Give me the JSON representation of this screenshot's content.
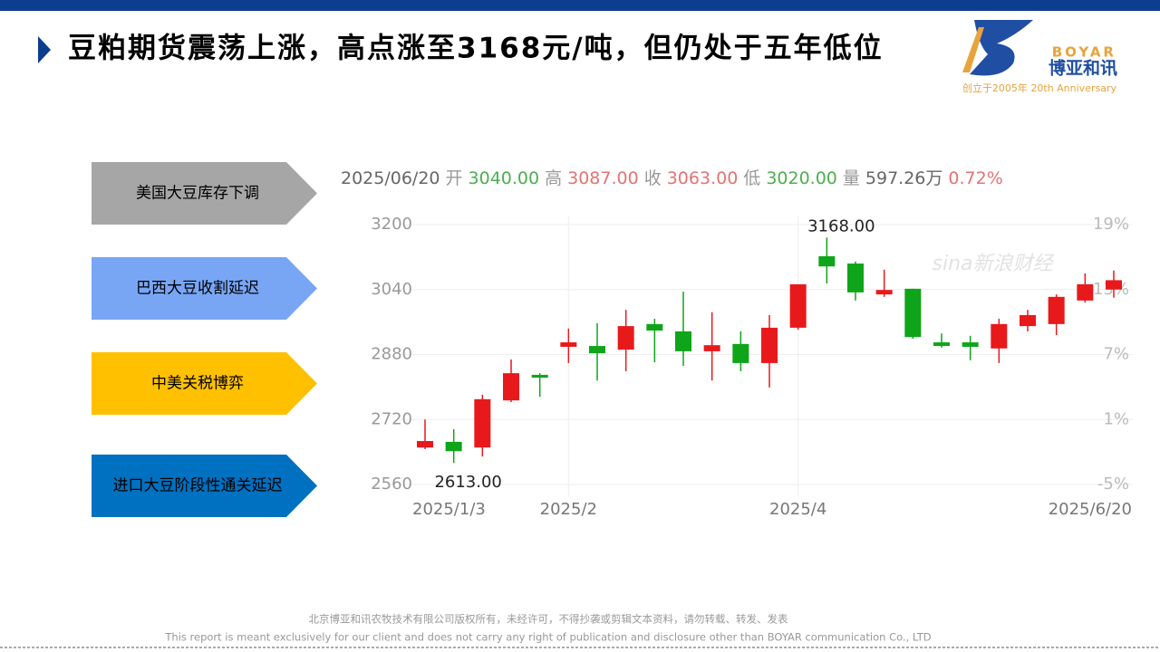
{
  "header": {
    "title": "豆粕期货震荡上涨，高点涨至3168元/吨，但仍处于五年低位"
  },
  "logo": {
    "brand": "BOYAR",
    "name": "博亚和讯",
    "tagline": "创立于2005年 20th Anniversary"
  },
  "factors": [
    {
      "text": "美国大豆库存下调",
      "color": "#a6a6a6"
    },
    {
      "text": "巴西大豆收割延迟",
      "color": "#78a6f5"
    },
    {
      "text": "中美关税博弈",
      "color": "#ffc000"
    },
    {
      "text": "进口大豆阶段性通关延迟",
      "color": "#0070c0"
    }
  ],
  "chart_data": {
    "type": "candlestick",
    "info": [
      {
        "text": "2025/06/20",
        "color": "#666666"
      },
      {
        "text": "开",
        "color": "#999999"
      },
      {
        "text": "3040.00",
        "color": "#4caf50"
      },
      {
        "text": "高",
        "color": "#999999"
      },
      {
        "text": "3087.00",
        "color": "#e57373"
      },
      {
        "text": "收",
        "color": "#999999"
      },
      {
        "text": "3063.00",
        "color": "#e57373"
      },
      {
        "text": "低",
        "color": "#999999"
      },
      {
        "text": "3020.00",
        "color": "#4caf50"
      },
      {
        "text": "量",
        "color": "#999999"
      },
      {
        "text": "597.26万",
        "color": "#666666"
      },
      {
        "text": "0.72%",
        "color": "#e57373"
      }
    ],
    "categories": [
      "2025/1/3",
      null,
      null,
      null,
      null,
      "2025/2",
      null,
      null,
      null,
      null,
      null,
      null,
      null,
      "2025/4",
      null,
      null,
      null,
      null,
      null,
      null,
      null,
      null,
      null,
      null,
      "2025/6/20"
    ],
    "open": [
      2651,
      2665,
      2651,
      2767,
      2830,
      2899,
      2901,
      2892,
      2955,
      2937,
      2888,
      2906,
      2859,
      2946,
      3122,
      3104,
      3028,
      3042,
      2910,
      2910,
      2895,
      2950,
      2955,
      3013,
      3040
    ],
    "high": [
      2720,
      2696,
      2781,
      2868,
      2834,
      2944,
      2957,
      2990,
      2968,
      3035,
      2984,
      2937,
      2977,
      3053,
      3168,
      3109,
      3089,
      3042,
      2932,
      2926,
      2968,
      2990,
      3028,
      3080,
      3087
    ],
    "low": [
      2647,
      2613,
      2629,
      2763,
      2776,
      2859,
      2816,
      2839,
      2861,
      2852,
      2816,
      2839,
      2799,
      2941,
      3055,
      3013,
      3022,
      2919,
      2897,
      2866,
      2859,
      2937,
      2928,
      3008,
      3020
    ],
    "close": [
      2667,
      2642,
      2770,
      2834,
      2823,
      2910,
      2883,
      2950,
      2939,
      2888,
      2903,
      2859,
      2946,
      3053,
      3097,
      3033,
      3039,
      2923,
      2901,
      2899,
      2955,
      2977,
      3022,
      3053,
      3063
    ],
    "up_color": "#e8191b",
    "down_color": "#0fa51a",
    "ylim": [
      2560,
      3200
    ],
    "yticks": [
      2560,
      2720,
      2880,
      3040,
      3200
    ],
    "y2lim": [
      -5,
      19
    ],
    "y2ticks": [
      {
        "value": -5,
        "label": "-5%"
      },
      {
        "value": 1,
        "label": "1%"
      },
      {
        "value": 7,
        "label": "7%"
      },
      {
        "value": 13,
        "label": "13%"
      },
      {
        "value": 19,
        "label": "19%"
      }
    ],
    "grid": true,
    "annotations": [
      {
        "text": "3168.00",
        "index": 14
      },
      {
        "text": "2613.00",
        "index": 1
      }
    ],
    "watermark": "sina新浪财经"
  },
  "footer": {
    "line1": "北京博亚和讯农牧技术有限公司版权所有，未经许可，不得抄袭或剪辑文本资料，请勿转载、转发、发表",
    "line2": "This report is meant exclusively for our client and does not carry any right of publication and disclosure other than BOYAR communication Co., LTD"
  }
}
